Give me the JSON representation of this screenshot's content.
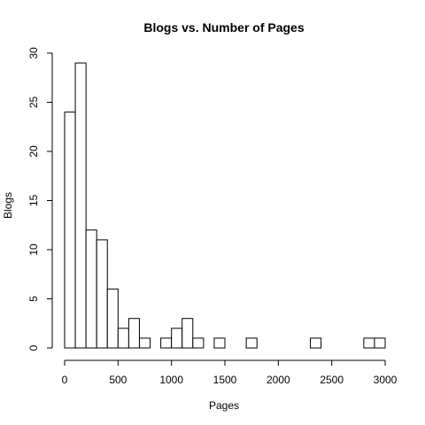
{
  "chart_data": {
    "type": "bar",
    "title": "Blogs vs. Number of Pages",
    "xlabel": "Pages",
    "ylabel": "Blogs",
    "xlim": [
      0,
      3000
    ],
    "ylim": [
      0,
      30
    ],
    "bin_width": 100,
    "bins": [
      {
        "start": 0,
        "end": 100,
        "count": 24
      },
      {
        "start": 100,
        "end": 200,
        "count": 29
      },
      {
        "start": 200,
        "end": 300,
        "count": 12
      },
      {
        "start": 300,
        "end": 400,
        "count": 11
      },
      {
        "start": 400,
        "end": 500,
        "count": 6
      },
      {
        "start": 500,
        "end": 600,
        "count": 2
      },
      {
        "start": 600,
        "end": 700,
        "count": 3
      },
      {
        "start": 700,
        "end": 800,
        "count": 1
      },
      {
        "start": 800,
        "end": 900,
        "count": 0
      },
      {
        "start": 900,
        "end": 1000,
        "count": 1
      },
      {
        "start": 1000,
        "end": 1100,
        "count": 2
      },
      {
        "start": 1100,
        "end": 1200,
        "count": 3
      },
      {
        "start": 1200,
        "end": 1300,
        "count": 1
      },
      {
        "start": 1300,
        "end": 1400,
        "count": 0
      },
      {
        "start": 1400,
        "end": 1500,
        "count": 1
      },
      {
        "start": 1500,
        "end": 1600,
        "count": 0
      },
      {
        "start": 1600,
        "end": 1700,
        "count": 0
      },
      {
        "start": 1700,
        "end": 1800,
        "count": 1
      },
      {
        "start": 1800,
        "end": 1900,
        "count": 0
      },
      {
        "start": 1900,
        "end": 2000,
        "count": 0
      },
      {
        "start": 2000,
        "end": 2100,
        "count": 0
      },
      {
        "start": 2100,
        "end": 2200,
        "count": 0
      },
      {
        "start": 2200,
        "end": 2300,
        "count": 0
      },
      {
        "start": 2300,
        "end": 2400,
        "count": 1
      },
      {
        "start": 2400,
        "end": 2500,
        "count": 0
      },
      {
        "start": 2500,
        "end": 2600,
        "count": 0
      },
      {
        "start": 2600,
        "end": 2700,
        "count": 0
      },
      {
        "start": 2700,
        "end": 2800,
        "count": 0
      },
      {
        "start": 2800,
        "end": 2900,
        "count": 1
      },
      {
        "start": 2900,
        "end": 3000,
        "count": 1
      }
    ],
    "x_ticks": [
      "0",
      "500",
      "1000",
      "1500",
      "2000",
      "2500",
      "3000"
    ],
    "y_ticks": [
      "0",
      "5",
      "10",
      "15",
      "20",
      "25",
      "30"
    ],
    "grid": false,
    "legend": "none",
    "bar_fill": "#ffffff",
    "bar_stroke": "#000000"
  }
}
